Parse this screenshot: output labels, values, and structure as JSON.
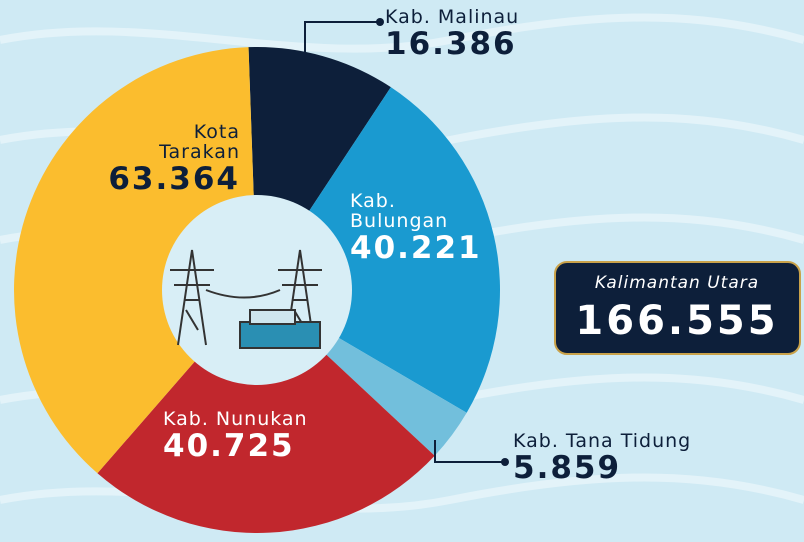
{
  "chart_data": {
    "type": "donut",
    "categories": [
      "Kab. Malinau",
      "Kab. Bulungan",
      "Kab. Tana Tidung",
      "Kab. Nunukan",
      "Kota Tarakan"
    ],
    "values": [
      16386,
      40221,
      5859,
      40725,
      63364
    ],
    "value_labels": [
      "16.386",
      "40.221",
      "5.859",
      "40.725",
      "63.364"
    ],
    "colors": [
      "#0d1f3a",
      "#1a9ad0",
      "#72bfdc",
      "#c1272d",
      "#fbbd2e"
    ],
    "total": {
      "name": "Kalimantan Utara",
      "value": 166555,
      "label": "166.555"
    }
  }
}
